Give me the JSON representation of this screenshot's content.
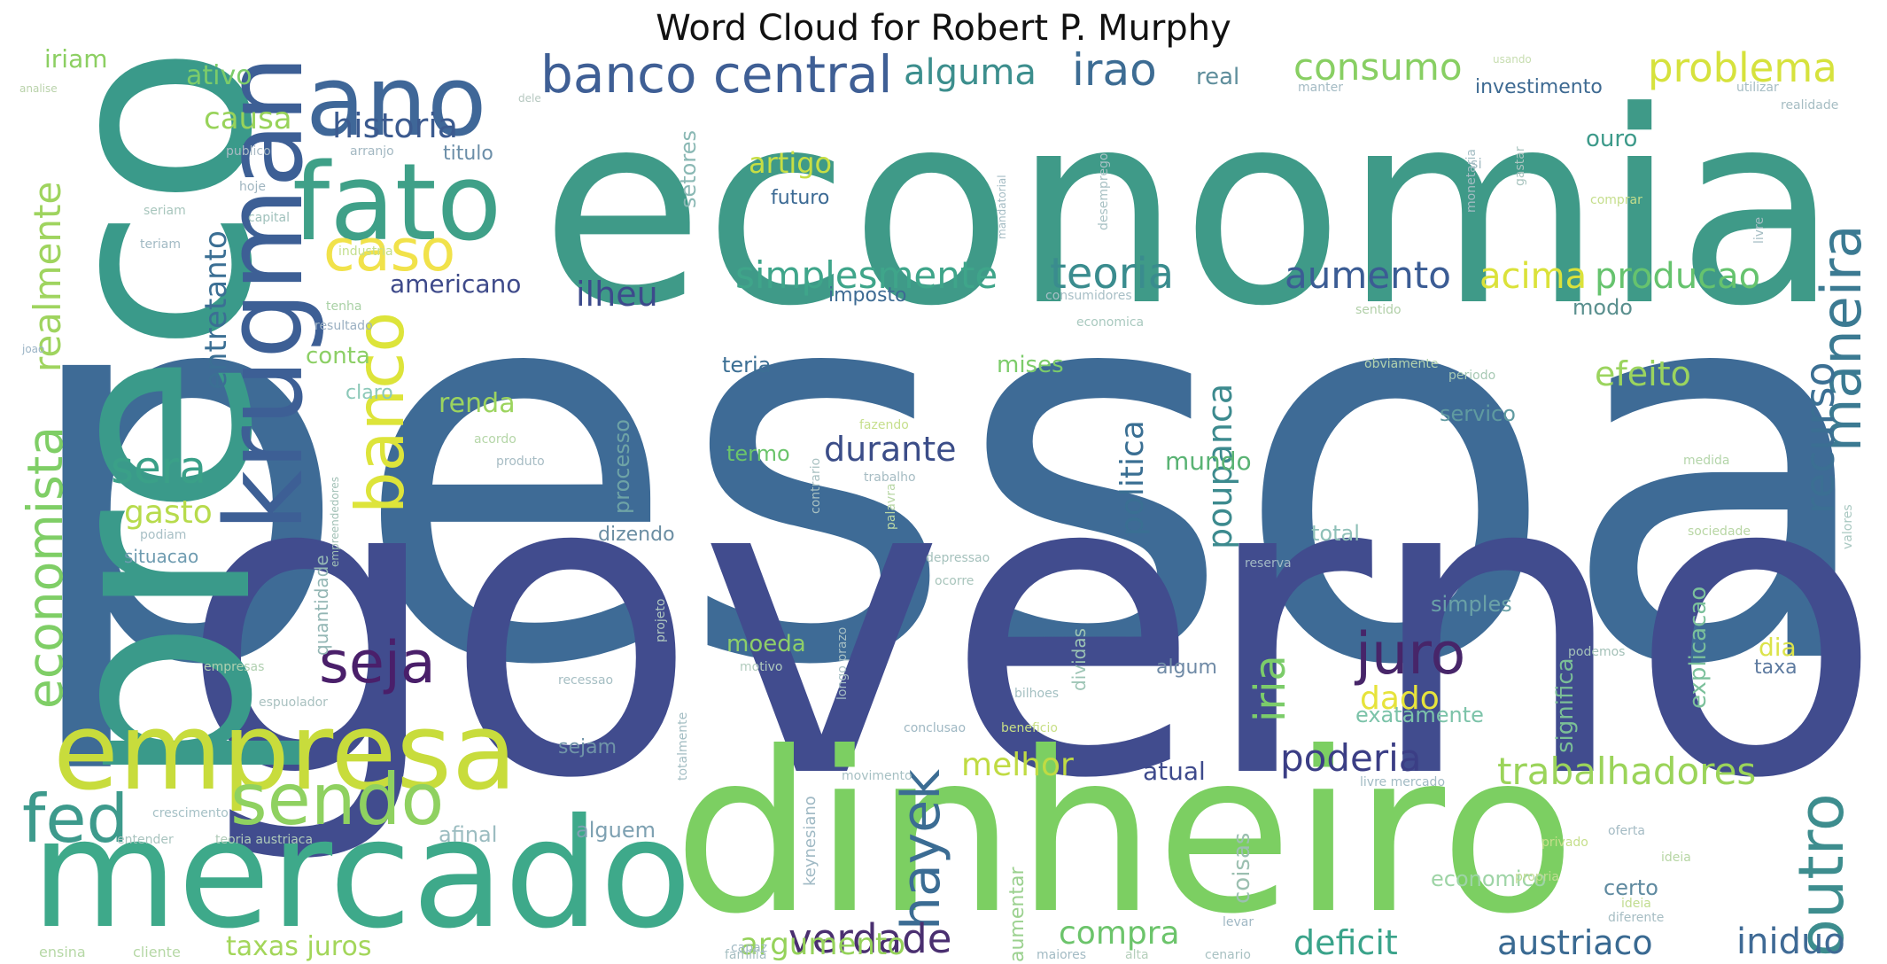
{
  "chart_data": {
    "type": "wordcloud",
    "title": "Word Cloud for Robert P. Murphy",
    "colormap": "viridis",
    "background": "#ffffff",
    "words": [
      {
        "text": "pessoa",
        "rank": 1,
        "color": "#3e6b96"
      },
      {
        "text": "governo",
        "rank": 2,
        "color": "#414c8e"
      },
      {
        "text": "economia",
        "rank": 3,
        "color": "#3f9a88"
      },
      {
        "text": "dinheiro",
        "rank": 4,
        "color": "#7ccf62"
      },
      {
        "text": "preco",
        "rank": 5,
        "color": "#3a9a8a"
      },
      {
        "text": "mercado",
        "rank": 6,
        "color": "#3ea98a"
      },
      {
        "text": "krugman",
        "rank": 7,
        "color": "#3d5f95"
      },
      {
        "text": "empresa",
        "rank": 8,
        "color": "#c8dc3c"
      },
      {
        "text": "ano",
        "rank": 9,
        "color": "#3f6798"
      },
      {
        "text": "fato",
        "rank": 10,
        "color": "#3fa088"
      },
      {
        "text": "sendo",
        "rank": 11,
        "color": "#8fd160"
      },
      {
        "text": "banco",
        "rank": 12,
        "color": "#dde43a"
      },
      {
        "text": "caso",
        "rank": 13,
        "color": "#f1e24a"
      },
      {
        "text": "seja",
        "rank": 14,
        "color": "#4a1f6a"
      },
      {
        "text": "juro",
        "rank": 15,
        "color": "#472569"
      },
      {
        "text": "fed",
        "rank": 16,
        "color": "#3d9a8c"
      },
      {
        "text": "economista",
        "rank": 17,
        "color": "#7fce66"
      },
      {
        "text": "banco central",
        "rank": 18,
        "color": "#3f5f95"
      },
      {
        "text": "outro",
        "rank": 19,
        "color": "#3d8d8e"
      },
      {
        "text": "maneira",
        "rank": 20,
        "color": "#3b7a92"
      },
      {
        "text": "teoria",
        "rank": 21,
        "color": "#3a8c8e"
      },
      {
        "text": "hayek",
        "rank": 22,
        "color": "#3b6c93"
      },
      {
        "text": "verdade",
        "rank": 23,
        "color": "#4a2f70"
      },
      {
        "text": "trabalhadores",
        "rank": 24,
        "color": "#9bd45a"
      },
      {
        "text": "realmente",
        "rank": 25,
        "color": "#9fd45f"
      },
      {
        "text": "recurso",
        "rank": 26,
        "color": "#3b6f93"
      },
      {
        "text": "simplesmente",
        "rank": 27,
        "color": "#3fa58a"
      },
      {
        "text": "problema",
        "rank": 28,
        "color": "#d6e23d"
      },
      {
        "text": "aumento",
        "rank": 29,
        "color": "#3b5c94"
      },
      {
        "text": "producao",
        "rank": 30,
        "color": "#66c36e"
      },
      {
        "text": "alguma",
        "rank": 31,
        "color": "#3c8e8d"
      },
      {
        "text": "irao",
        "rank": 32,
        "color": "#3d6c93"
      },
      {
        "text": "consumo",
        "rank": 33,
        "color": "#88cf63"
      },
      {
        "text": "historia",
        "rank": 34,
        "color": "#3b5a8f"
      },
      {
        "text": "ilheu",
        "rank": 35,
        "color": "#3d4a8c"
      },
      {
        "text": "acima",
        "rank": 36,
        "color": "#dbe23a"
      },
      {
        "text": "efeito",
        "rank": 37,
        "color": "#9bd45e"
      },
      {
        "text": "durante",
        "rank": 38,
        "color": "#3b4d88"
      },
      {
        "text": "sera",
        "rank": 39,
        "color": "#3aa088"
      },
      {
        "text": "poderia",
        "rank": 40,
        "color": "#3b3e85"
      },
      {
        "text": "melhor",
        "rank": 41,
        "color": "#c0db43"
      },
      {
        "text": "dado",
        "rank": 42,
        "color": "#e6e33c"
      },
      {
        "text": "deficit",
        "rank": 43,
        "color": "#3aa38a"
      },
      {
        "text": "austriaco",
        "rank": 44,
        "color": "#3a6a92"
      },
      {
        "text": "iniduo",
        "rank": 45,
        "color": "#3f6a95"
      },
      {
        "text": "compra",
        "rank": 46,
        "color": "#6cc46b"
      },
      {
        "text": "argumento",
        "rank": 47,
        "color": "#95d25a"
      },
      {
        "text": "taxas juros",
        "rank": 48,
        "color": "#a3d65a"
      },
      {
        "text": "politica",
        "rank": 49,
        "color": "#3a6f93"
      },
      {
        "text": "poupanca",
        "rank": 50,
        "color": "#3c8a8e"
      },
      {
        "text": "gasto",
        "rank": 51,
        "color": "#b7db4c"
      },
      {
        "text": "artigo",
        "rank": 52,
        "color": "#c7de44"
      },
      {
        "text": "causa",
        "rank": 53,
        "color": "#98d35a"
      },
      {
        "text": "entretanto",
        "rank": 54,
        "color": "#3b6f94"
      },
      {
        "text": "ativo",
        "rank": 55,
        "color": "#7ccc6a"
      },
      {
        "text": "iriam",
        "rank": 56,
        "color": "#8ccf62"
      },
      {
        "text": "americano",
        "rank": 57,
        "color": "#3e4a8a"
      },
      {
        "text": "conta",
        "rank": 58,
        "color": "#8ccf65"
      },
      {
        "text": "renda",
        "rank": 59,
        "color": "#9cd45e"
      },
      {
        "text": "claro",
        "rank": 60,
        "color": "#8bc8b8"
      },
      {
        "text": "mises",
        "rank": 61,
        "color": "#7ccc6a"
      },
      {
        "text": "mundo",
        "rank": 62,
        "color": "#5ab374"
      },
      {
        "text": "modo",
        "rank": 63,
        "color": "#5a8f8e"
      },
      {
        "text": "teria",
        "rank": 64,
        "color": "#3c6f94"
      },
      {
        "text": "imposto",
        "rank": 65,
        "color": "#3d6a93"
      },
      {
        "text": "futuro",
        "rank": 66,
        "color": "#3c6a94"
      },
      {
        "text": "ouro",
        "rank": 67,
        "color": "#3d9a8a"
      },
      {
        "text": "real",
        "rank": 68,
        "color": "#5f8e9c"
      },
      {
        "text": "investimento",
        "rank": 69,
        "color": "#3e6a92"
      },
      {
        "text": "setores",
        "rank": 70,
        "color": "#8ab8b4"
      },
      {
        "text": "titulo",
        "rank": 71,
        "color": "#6b8ea8"
      },
      {
        "text": "termo",
        "rank": 72,
        "color": "#6bc46b"
      },
      {
        "text": "processo",
        "rank": 73,
        "color": "#6ea3a6"
      },
      {
        "text": "dizendo",
        "rank": 74,
        "color": "#6b8ea3"
      },
      {
        "text": "total",
        "rank": 75,
        "color": "#8fc0b8"
      },
      {
        "text": "servico",
        "rank": 76,
        "color": "#5f9aa0"
      },
      {
        "text": "simples",
        "rank": 77,
        "color": "#6aa1a7"
      },
      {
        "text": "moeda",
        "rank": 78,
        "color": "#8ecf68"
      },
      {
        "text": "algum",
        "rank": 79,
        "color": "#6f8aa6"
      },
      {
        "text": "dia",
        "rank": 80,
        "color": "#dbe34a"
      },
      {
        "text": "taxa",
        "rank": 81,
        "color": "#5e7ba0"
      },
      {
        "text": "exatamente",
        "rank": 82,
        "color": "#7cc3a9"
      },
      {
        "text": "significa",
        "rank": 83,
        "color": "#7bbf96"
      },
      {
        "text": "explicacao",
        "rank": 84,
        "color": "#7bc09b"
      },
      {
        "text": "atual",
        "rank": 85,
        "color": "#3e4a8c"
      },
      {
        "text": "iria",
        "rank": 86,
        "color": "#7ccc6a"
      },
      {
        "text": "situacao",
        "rank": 87,
        "color": "#6e9bb0"
      },
      {
        "text": "quantidade",
        "rank": 88,
        "color": "#93b6b4"
      },
      {
        "text": "sejam",
        "rank": 89,
        "color": "#7094a8"
      },
      {
        "text": "alguem",
        "rank": 90,
        "color": "#7ea1b2"
      },
      {
        "text": "afinal",
        "rank": 91,
        "color": "#9bbcc0"
      },
      {
        "text": "certo",
        "rank": 92,
        "color": "#5f8aa0"
      },
      {
        "text": "economico",
        "rank": 93,
        "color": "#9ed4a6"
      },
      {
        "text": "aumentar",
        "rank": 94,
        "color": "#9bd18f"
      },
      {
        "text": "coisas",
        "rank": 95,
        "color": "#9bbfb0"
      },
      {
        "text": "dividas",
        "rank": 96,
        "color": "#9cc4b4"
      },
      {
        "text": "keynesiano",
        "rank": 97,
        "color": "#9fb9c4"
      },
      {
        "text": "publico",
        "rank": 98,
        "color": "#a9bac4"
      },
      {
        "text": "arranjo",
        "rank": 99,
        "color": "#a3b8c2"
      },
      {
        "text": "hoje",
        "rank": 100,
        "color": "#9fb5c0"
      },
      {
        "text": "capital",
        "rank": 101,
        "color": "#a0c1bc"
      },
      {
        "text": "seriam",
        "rank": 102,
        "color": "#a8c6bd"
      },
      {
        "text": "teriam",
        "rank": 103,
        "color": "#a2bac4"
      },
      {
        "text": "industria",
        "rank": 104,
        "color": "#c3df8e"
      },
      {
        "text": "analise",
        "rank": 105,
        "color": "#b9d2aa"
      },
      {
        "text": "dele",
        "rank": 106,
        "color": "#b6c8c0"
      },
      {
        "text": "usando",
        "rank": 107,
        "color": "#c7ddb0"
      },
      {
        "text": "resultado",
        "rank": 108,
        "color": "#9bb0c2"
      },
      {
        "text": "tenha",
        "rank": 109,
        "color": "#a9d1a5"
      },
      {
        "text": "joao",
        "rank": 110,
        "color": "#9bb4c6"
      },
      {
        "text": "podemos",
        "rank": 111,
        "color": "#a4c1b8"
      },
      {
        "text": "acordo",
        "rank": 112,
        "color": "#b5d6a8"
      },
      {
        "text": "produto",
        "rank": 113,
        "color": "#a7bcc4"
      },
      {
        "text": "empreendedores",
        "rank": 114,
        "color": "#a1c0b6"
      },
      {
        "text": "podiam",
        "rank": 115,
        "color": "#a9c0c6"
      },
      {
        "text": "empresas",
        "rank": 116,
        "color": "#b0d0b0"
      },
      {
        "text": "espuolador",
        "rank": 117,
        "color": "#a9c1c0"
      },
      {
        "text": "crescimento",
        "rank": 118,
        "color": "#a6c1c6"
      },
      {
        "text": "entender",
        "rank": 119,
        "color": "#a9c4bf"
      },
      {
        "text": "teoria austriaca",
        "rank": 120,
        "color": "#b0cbb9"
      },
      {
        "text": "ensina",
        "rank": 121,
        "color": "#b6d8a6"
      },
      {
        "text": "cliente",
        "rank": 122,
        "color": "#b6d8a6"
      },
      {
        "text": "desemprego",
        "rank": 123,
        "color": "#a8c1c4"
      },
      {
        "text": "mandatorial",
        "rank": 124,
        "color": "#a3bbc3"
      },
      {
        "text": "consumidores",
        "rank": 125,
        "color": "#a8bfc6"
      },
      {
        "text": "economica",
        "rank": 126,
        "color": "#a9c9bf"
      },
      {
        "text": "obviamente",
        "rank": 127,
        "color": "#b3d2ae"
      },
      {
        "text": "periodo",
        "rank": 128,
        "color": "#a7c9b4"
      },
      {
        "text": "sentido",
        "rank": 129,
        "color": "#b2d0a9"
      },
      {
        "text": "sociedade",
        "rank": 130,
        "color": "#b8d6a4"
      },
      {
        "text": "medida",
        "rank": 131,
        "color": "#b4d5aa"
      },
      {
        "text": "valores",
        "rank": 132,
        "color": "#a9c8c1"
      },
      {
        "text": "fazendo",
        "rank": 133,
        "color": "#c6df8c"
      },
      {
        "text": "contrario",
        "rank": 134,
        "color": "#a9c1c2"
      },
      {
        "text": "palavra",
        "rank": 135,
        "color": "#b9d7a6"
      },
      {
        "text": "trabalho",
        "rank": 136,
        "color": "#a6bcc3"
      },
      {
        "text": "reserva",
        "rank": 137,
        "color": "#a1b8c4"
      },
      {
        "text": "depressao",
        "rank": 138,
        "color": "#a6c2bd"
      },
      {
        "text": "ocorre",
        "rank": 139,
        "color": "#a9c5bc"
      },
      {
        "text": "projeto",
        "rank": 140,
        "color": "#b0c8bf"
      },
      {
        "text": "longo prazo",
        "rank": 141,
        "color": "#a6bfc4"
      },
      {
        "text": "bilhoes",
        "rank": 142,
        "color": "#a4c0c2"
      },
      {
        "text": "recessao",
        "rank": 143,
        "color": "#a5bec3"
      },
      {
        "text": "motivo",
        "rank": 144,
        "color": "#b1cbbd"
      },
      {
        "text": "conclusao",
        "rank": 145,
        "color": "#9fb8c3"
      },
      {
        "text": "beneficio",
        "rank": 146,
        "color": "#c8df86"
      },
      {
        "text": "movimento",
        "rank": 147,
        "color": "#a6c0c3"
      },
      {
        "text": "totalmente",
        "rank": 148,
        "color": "#a3bdc3"
      },
      {
        "text": "livre mercado",
        "rank": 149,
        "color": "#a2bbc4"
      },
      {
        "text": "privado",
        "rank": 150,
        "color": "#c6df8b"
      },
      {
        "text": "oferta",
        "rank": 151,
        "color": "#a4bbc4"
      },
      {
        "text": "propria",
        "rank": 152,
        "color": "#bfdc93"
      },
      {
        "text": "ideia",
        "rank": 153,
        "color": "#b7d6a4"
      },
      {
        "text": "diferente",
        "rank": 154,
        "color": "#a6bdc3"
      },
      {
        "text": "capaz",
        "rank": 155,
        "color": "#a0b9c3"
      },
      {
        "text": "familia",
        "rank": 156,
        "color": "#a6bfc2"
      },
      {
        "text": "maiores",
        "rank": 157,
        "color": "#a3bbc4"
      },
      {
        "text": "alta",
        "rank": 158,
        "color": "#b5cfbb"
      },
      {
        "text": "cenario",
        "rank": 159,
        "color": "#a8c1c2"
      },
      {
        "text": "levar",
        "rank": 160,
        "color": "#a0b8c4"
      },
      {
        "text": "realidade",
        "rank": 161,
        "color": "#a6bdc3"
      },
      {
        "text": "utilizar",
        "rank": 162,
        "color": "#a5bcc3"
      },
      {
        "text": "manter",
        "rank": 163,
        "color": "#a4bbc4"
      },
      {
        "text": "ideia",
        "rank": 164,
        "color": "#c1dc90"
      },
      {
        "text": "si",
        "rank": 165,
        "color": "#a5bdc3"
      },
      {
        "text": "gastar",
        "rank": 166,
        "color": "#a9c4bf"
      },
      {
        "text": "comprar",
        "rank": 167,
        "color": "#c5de8c"
      },
      {
        "text": "monetaria",
        "rank": 168,
        "color": "#a3bcc3"
      },
      {
        "text": "livre",
        "rank": 169,
        "color": "#a5bdc3"
      }
    ]
  }
}
